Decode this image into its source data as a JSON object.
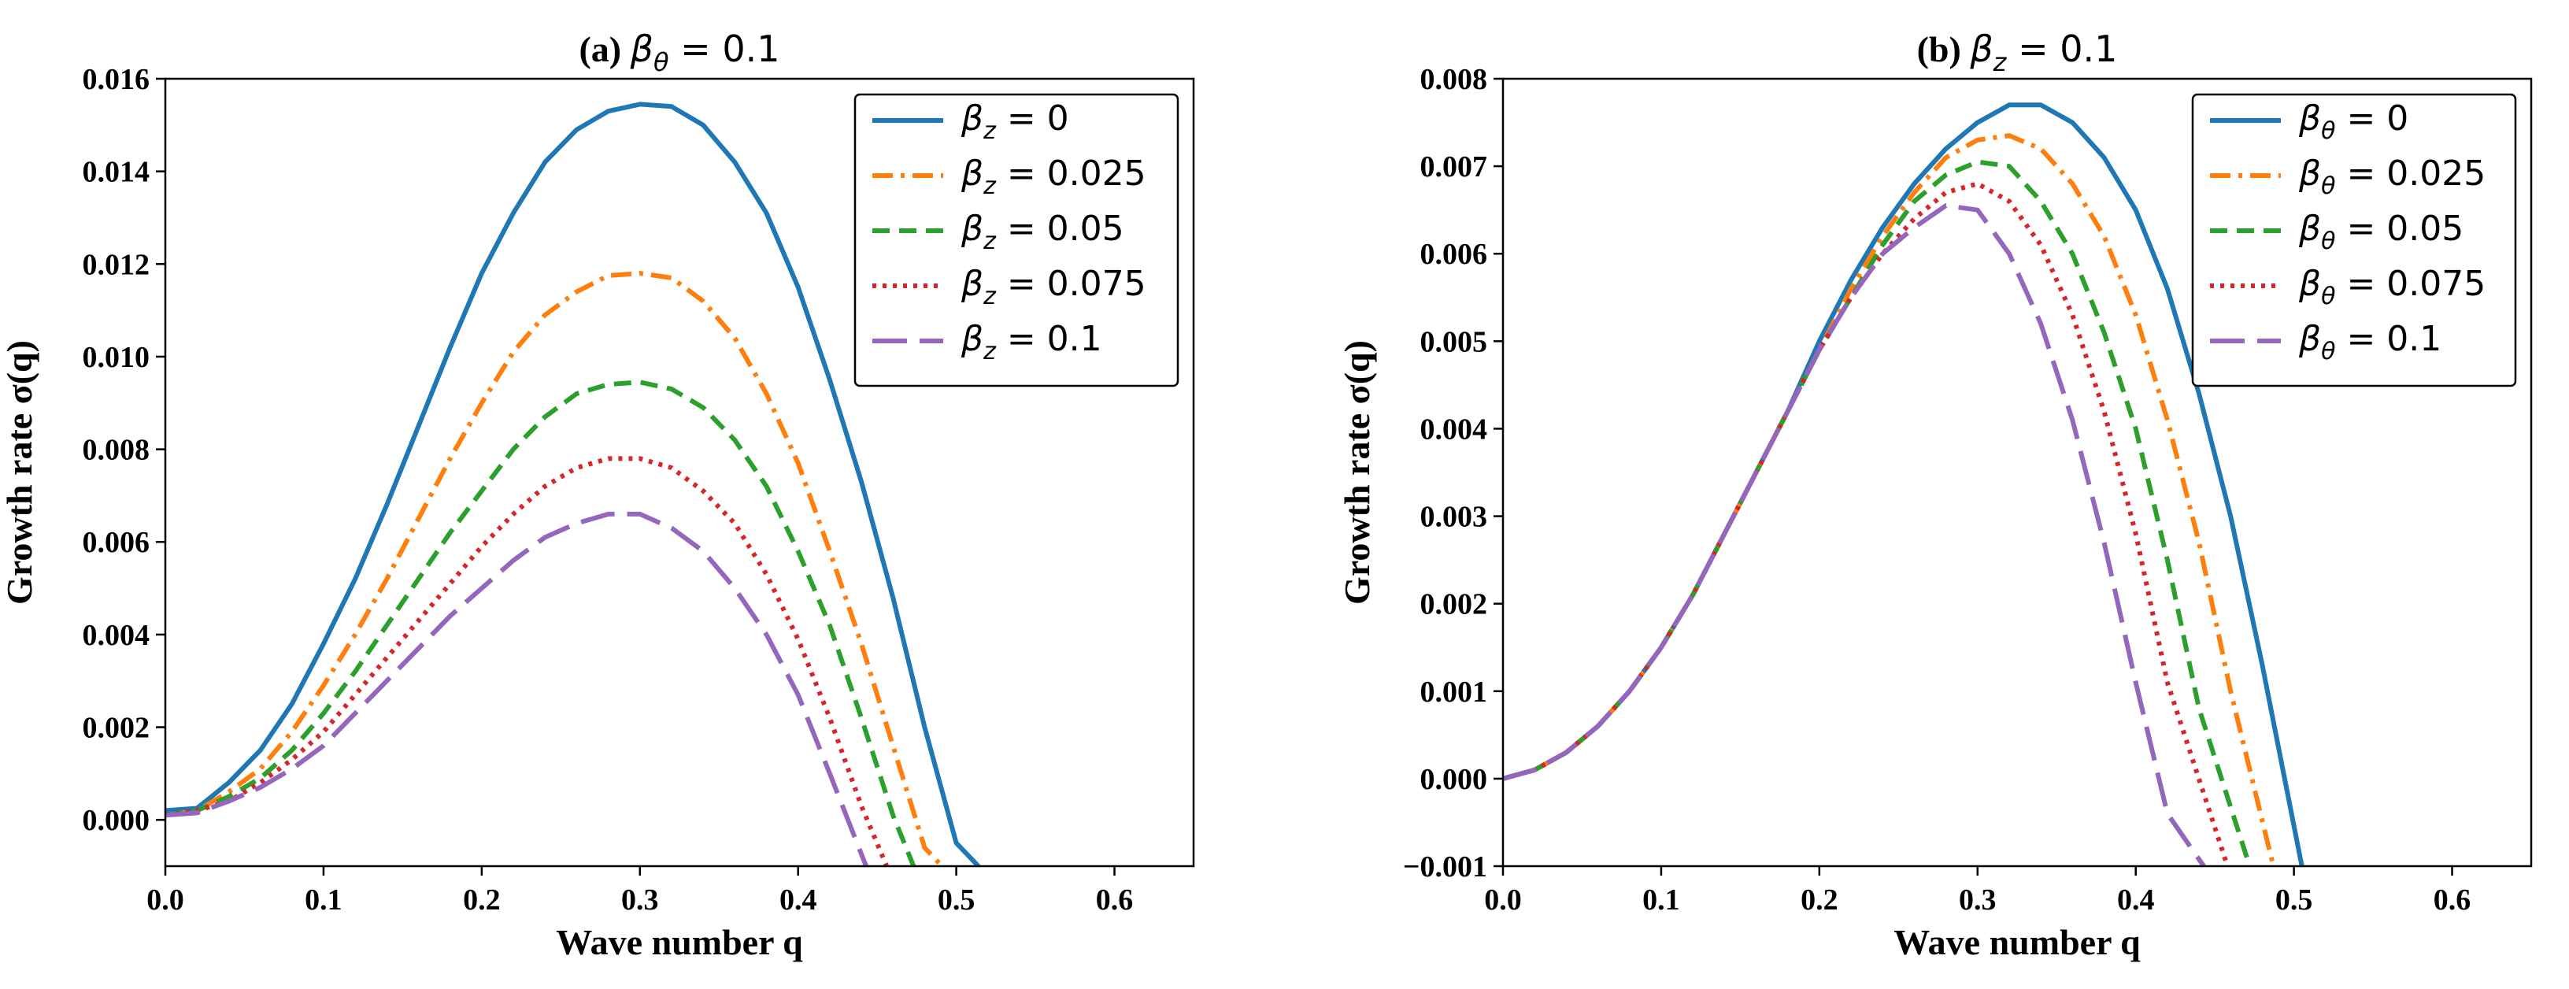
{
  "chart_data": [
    {
      "type": "line",
      "title_label": "(a)",
      "title_param": "β",
      "title_param_sub": "θ",
      "title_value": "= 0.1",
      "xlabel": "Wave number q",
      "ylabel": "Growth rate σ(q)",
      "xlim": [
        0.0,
        0.65
      ],
      "ylim": [
        -0.001,
        0.016
      ],
      "xticks": [
        0.0,
        0.1,
        0.2,
        0.3,
        0.4,
        0.5,
        0.6
      ],
      "xtick_labels": [
        "0.0",
        "0.1",
        "0.2",
        "0.3",
        "0.4",
        "0.5",
        "0.6"
      ],
      "yticks": [
        0.0,
        0.002,
        0.004,
        0.006,
        0.008,
        0.01,
        0.012,
        0.014,
        0.016
      ],
      "ytick_labels": [
        "0.000",
        "0.002",
        "0.004",
        "0.006",
        "0.008",
        "0.010",
        "0.012",
        "0.014",
        "0.016"
      ],
      "legend_position": "upper-right",
      "series": [
        {
          "name": "βz = 0",
          "legend_sym": "β",
          "legend_sub": "z",
          "legend_val": "= 0",
          "color": "#1f77b4",
          "style": "solid",
          "x": [
            0.0,
            0.02,
            0.04,
            0.06,
            0.08,
            0.1,
            0.12,
            0.14,
            0.16,
            0.18,
            0.2,
            0.22,
            0.24,
            0.26,
            0.28,
            0.3,
            0.32,
            0.34,
            0.36,
            0.38,
            0.4,
            0.42,
            0.44,
            0.46,
            0.48,
            0.5,
            0.514
          ],
          "y": [
            0.0002,
            0.00025,
            0.0008,
            0.0015,
            0.0025,
            0.0038,
            0.0052,
            0.0068,
            0.0085,
            0.0102,
            0.0118,
            0.0131,
            0.0142,
            0.0149,
            0.0153,
            0.01545,
            0.0154,
            0.015,
            0.0142,
            0.0131,
            0.0115,
            0.0095,
            0.0073,
            0.0048,
            0.002,
            -0.0005,
            -0.001
          ]
        },
        {
          "name": "βz = 0.025",
          "legend_sym": "β",
          "legend_sub": "z",
          "legend_val": "= 0.025",
          "color": "#ff7f0e",
          "style": "dashdot",
          "x": [
            0.0,
            0.02,
            0.04,
            0.06,
            0.08,
            0.1,
            0.12,
            0.14,
            0.16,
            0.18,
            0.2,
            0.22,
            0.24,
            0.26,
            0.28,
            0.3,
            0.32,
            0.34,
            0.36,
            0.38,
            0.4,
            0.42,
            0.44,
            0.46,
            0.48,
            0.491
          ],
          "y": [
            0.0001,
            0.0002,
            0.0006,
            0.0011,
            0.0019,
            0.0029,
            0.004,
            0.0052,
            0.0065,
            0.0078,
            0.009,
            0.0101,
            0.0109,
            0.0114,
            0.01175,
            0.0118,
            0.0117,
            0.0112,
            0.0104,
            0.0092,
            0.0077,
            0.0058,
            0.0038,
            0.0016,
            -0.0006,
            -0.001
          ]
        },
        {
          "name": "βz = 0.05",
          "legend_sym": "β",
          "legend_sub": "z",
          "legend_val": "= 0.05",
          "color": "#2ca02c",
          "style": "dashed",
          "x": [
            0.0,
            0.02,
            0.04,
            0.06,
            0.08,
            0.1,
            0.12,
            0.14,
            0.16,
            0.18,
            0.2,
            0.22,
            0.24,
            0.26,
            0.28,
            0.3,
            0.32,
            0.34,
            0.36,
            0.38,
            0.4,
            0.42,
            0.44,
            0.46,
            0.473
          ],
          "y": [
            0.0001,
            0.0002,
            0.0005,
            0.0009,
            0.0015,
            0.0023,
            0.0032,
            0.0042,
            0.0052,
            0.0062,
            0.0071,
            0.008,
            0.0087,
            0.0092,
            0.0094,
            0.00945,
            0.0093,
            0.0089,
            0.0082,
            0.0072,
            0.0058,
            0.0042,
            0.0022,
            0.0001,
            -0.001
          ]
        },
        {
          "name": "βz = 0.075",
          "legend_sym": "β",
          "legend_sub": "z",
          "legend_val": "= 0.075",
          "color": "#d62728",
          "style": "dotted",
          "x": [
            0.0,
            0.02,
            0.04,
            0.06,
            0.08,
            0.1,
            0.12,
            0.14,
            0.16,
            0.18,
            0.2,
            0.22,
            0.24,
            0.26,
            0.28,
            0.3,
            0.32,
            0.34,
            0.36,
            0.38,
            0.4,
            0.42,
            0.44,
            0.456
          ],
          "y": [
            0.0001,
            0.0002,
            0.0004,
            0.0008,
            0.0013,
            0.0019,
            0.0027,
            0.0035,
            0.0043,
            0.0051,
            0.0059,
            0.0066,
            0.0072,
            0.0076,
            0.0078,
            0.0078,
            0.0076,
            0.0071,
            0.0064,
            0.0053,
            0.0039,
            0.0022,
            0.0003,
            -0.001
          ]
        },
        {
          "name": "βz = 0.1",
          "legend_sym": "β",
          "legend_sub": "z",
          "legend_val": "= 0.1",
          "color": "#9467bd",
          "style": "longdash",
          "x": [
            0.0,
            0.02,
            0.04,
            0.06,
            0.08,
            0.1,
            0.12,
            0.14,
            0.16,
            0.18,
            0.2,
            0.22,
            0.24,
            0.26,
            0.28,
            0.3,
            0.32,
            0.34,
            0.36,
            0.38,
            0.4,
            0.42,
            0.443
          ],
          "y": [
            0.0001,
            0.00015,
            0.0004,
            0.0007,
            0.0011,
            0.0016,
            0.0023,
            0.003,
            0.0037,
            0.0044,
            0.005,
            0.0056,
            0.0061,
            0.0064,
            0.0066,
            0.0066,
            0.0063,
            0.0058,
            0.005,
            0.004,
            0.0027,
            0.001,
            -0.001
          ]
        }
      ]
    },
    {
      "type": "line",
      "title_label": "(b)",
      "title_param": "β",
      "title_param_sub": "z",
      "title_value": "= 0.1",
      "xlabel": "Wave number q",
      "ylabel": "Growth rate σ(q)",
      "xlim": [
        0.0,
        0.65
      ],
      "ylim": [
        -0.001,
        0.008
      ],
      "xticks": [
        0.0,
        0.1,
        0.2,
        0.3,
        0.4,
        0.5,
        0.6
      ],
      "xtick_labels": [
        "0.0",
        "0.1",
        "0.2",
        "0.3",
        "0.4",
        "0.5",
        "0.6"
      ],
      "yticks": [
        -0.001,
        0.0,
        0.001,
        0.002,
        0.003,
        0.004,
        0.005,
        0.006,
        0.007,
        0.008
      ],
      "ytick_labels": [
        "−0.001",
        "0.000",
        "0.001",
        "0.002",
        "0.003",
        "0.004",
        "0.005",
        "0.006",
        "0.007",
        "0.008"
      ],
      "legend_position": "upper-right",
      "series": [
        {
          "name": "βθ = 0",
          "legend_sym": "β",
          "legend_sub": "θ",
          "legend_val": "= 0",
          "color": "#1f77b4",
          "style": "solid",
          "x": [
            0.0,
            0.02,
            0.04,
            0.06,
            0.08,
            0.1,
            0.12,
            0.14,
            0.16,
            0.18,
            0.2,
            0.22,
            0.24,
            0.26,
            0.28,
            0.3,
            0.32,
            0.34,
            0.36,
            0.38,
            0.4,
            0.42,
            0.44,
            0.46,
            0.48,
            0.505
          ],
          "y": [
            0.0,
            0.0001,
            0.0003,
            0.0006,
            0.001,
            0.0015,
            0.0021,
            0.0028,
            0.0035,
            0.0042,
            0.005,
            0.0057,
            0.0063,
            0.0068,
            0.0072,
            0.0075,
            0.0077,
            0.0077,
            0.0075,
            0.0071,
            0.0065,
            0.0056,
            0.0044,
            0.003,
            0.0013,
            -0.001
          ]
        },
        {
          "name": "βθ = 0.025",
          "legend_sym": "β",
          "legend_sub": "θ",
          "legend_val": "= 0.025",
          "color": "#ff7f0e",
          "style": "dashdot",
          "x": [
            0.0,
            0.02,
            0.04,
            0.06,
            0.08,
            0.1,
            0.12,
            0.14,
            0.16,
            0.18,
            0.2,
            0.22,
            0.24,
            0.26,
            0.28,
            0.3,
            0.32,
            0.34,
            0.36,
            0.38,
            0.4,
            0.42,
            0.44,
            0.46,
            0.487
          ],
          "y": [
            0.0,
            0.0001,
            0.0003,
            0.0006,
            0.001,
            0.0015,
            0.0021,
            0.0028,
            0.0035,
            0.0042,
            0.0049,
            0.0056,
            0.0062,
            0.0067,
            0.0071,
            0.0073,
            0.00735,
            0.0072,
            0.0068,
            0.0062,
            0.0053,
            0.0041,
            0.0027,
            0.001,
            -0.001
          ]
        },
        {
          "name": "βθ = 0.05",
          "legend_sym": "β",
          "legend_sub": "θ",
          "legend_val": "= 0.05",
          "color": "#2ca02c",
          "style": "dashed",
          "x": [
            0.0,
            0.02,
            0.04,
            0.06,
            0.08,
            0.1,
            0.12,
            0.14,
            0.16,
            0.18,
            0.2,
            0.22,
            0.24,
            0.26,
            0.28,
            0.3,
            0.32,
            0.34,
            0.36,
            0.38,
            0.4,
            0.42,
            0.44,
            0.472
          ],
          "y": [
            0.0,
            0.0001,
            0.0003,
            0.0006,
            0.001,
            0.0015,
            0.0021,
            0.0028,
            0.0035,
            0.0042,
            0.0049,
            0.0055,
            0.0061,
            0.0066,
            0.0069,
            0.00705,
            0.007,
            0.0066,
            0.006,
            0.0051,
            0.004,
            0.0025,
            0.0008,
            -0.001
          ]
        },
        {
          "name": "βθ = 0.075",
          "legend_sym": "β",
          "legend_sub": "θ",
          "legend_val": "= 0.075",
          "color": "#d62728",
          "style": "dotted",
          "x": [
            0.0,
            0.02,
            0.04,
            0.06,
            0.08,
            0.1,
            0.12,
            0.14,
            0.16,
            0.18,
            0.2,
            0.22,
            0.24,
            0.26,
            0.28,
            0.3,
            0.32,
            0.34,
            0.36,
            0.38,
            0.4,
            0.42,
            0.458
          ],
          "y": [
            0.0,
            0.0001,
            0.0003,
            0.0006,
            0.001,
            0.0015,
            0.0021,
            0.0028,
            0.0035,
            0.0042,
            0.0049,
            0.0055,
            0.006,
            0.0064,
            0.0067,
            0.0068,
            0.0066,
            0.0061,
            0.0053,
            0.0042,
            0.0028,
            0.0011,
            -0.001
          ]
        },
        {
          "name": "βθ = 0.1",
          "legend_sym": "β",
          "legend_sub": "θ",
          "legend_val": "= 0.1",
          "color": "#9467bd",
          "style": "longdash",
          "x": [
            0.0,
            0.02,
            0.04,
            0.06,
            0.08,
            0.1,
            0.12,
            0.14,
            0.16,
            0.18,
            0.2,
            0.22,
            0.24,
            0.26,
            0.28,
            0.3,
            0.32,
            0.34,
            0.36,
            0.38,
            0.4,
            0.42,
            0.443
          ],
          "y": [
            0.0,
            0.0001,
            0.0003,
            0.0006,
            0.001,
            0.0015,
            0.0021,
            0.0028,
            0.0035,
            0.0042,
            0.0049,
            0.0055,
            0.006,
            0.0063,
            0.00655,
            0.0065,
            0.006,
            0.0052,
            0.0041,
            0.0027,
            0.0011,
            -0.0004,
            -0.001
          ]
        }
      ]
    }
  ]
}
